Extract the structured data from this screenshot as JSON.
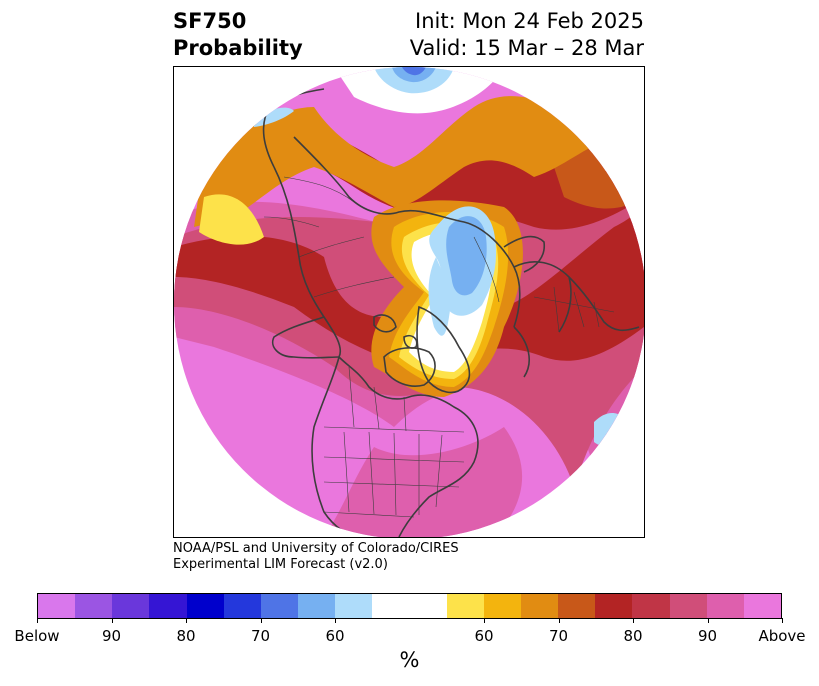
{
  "header": {
    "variable": "SF750",
    "product": "Probability",
    "init": "Init: Mon 24 Feb 2025",
    "valid": "Valid: 15 Mar – 28 Mar"
  },
  "credit": {
    "line1": "NOAA/PSL and University of Colorado/CIRES",
    "line2": "Experimental LIM Forecast (v2.0)"
  },
  "colorbar": {
    "colors": [
      "#d977ec",
      "#9b55e3",
      "#6a37db",
      "#3515d4",
      "#0000cc",
      "#2438dc",
      "#4f74e6",
      "#76b0f1",
      "#aedcfa",
      "#ffffff",
      "#fde24a",
      "#f3b40e",
      "#e18c12",
      "#c85819",
      "#b32424",
      "#c03546",
      "#d04e79",
      "#de5fad",
      "#ea77dd"
    ],
    "tick_labels": [
      "Below",
      "90",
      "80",
      "70",
      "60",
      "60",
      "70",
      "80",
      "90",
      "Above"
    ],
    "unit_label": "%"
  },
  "map": {
    "projection": "north-polar-stereographic",
    "palette": {
      "far_above": "#ea77dd",
      "above_90": "#de5fad",
      "above_80": "#d04e79",
      "above_75": "#c03546",
      "above_70": "#b32424",
      "above_65": "#c85819",
      "above_60": "#e18c12",
      "above_55": "#f3b40e",
      "above_50": "#fde24a",
      "below_55": "#aedcfa",
      "below_60": "#76b0f1",
      "below_70": "#4f74e6",
      "coast": "#3d3d3d"
    }
  }
}
